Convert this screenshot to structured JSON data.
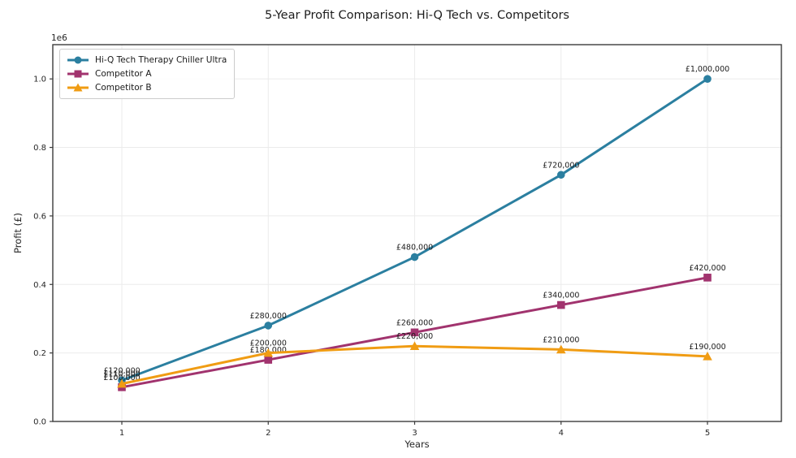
{
  "chart_data": {
    "type": "line",
    "title": "5-Year Profit Comparison: Hi-Q Tech vs. Competitors",
    "xlabel": "Years",
    "ylabel": "Profit (£)",
    "offset_label": "1e6",
    "x": [
      1,
      2,
      3,
      4,
      5
    ],
    "series": [
      {
        "name": "Hi-Q Tech Therapy Chiller Ultra",
        "color": "#2b7fa0",
        "marker": "circle",
        "values": [
          120000,
          280000,
          480000,
          720000,
          1000000
        ],
        "labels": [
          "£120,000",
          "£280,000",
          "£480,000",
          "£720,000",
          "£1,000,000"
        ]
      },
      {
        "name": "Competitor A",
        "color": "#a1336e",
        "marker": "square",
        "values": [
          100000,
          180000,
          260000,
          340000,
          420000
        ],
        "labels": [
          "£100,000",
          "£180,000",
          "£260,000",
          "£340,000",
          "£420,000"
        ]
      },
      {
        "name": "Competitor B",
        "color": "#f09c13",
        "marker": "triangle",
        "values": [
          110000,
          200000,
          220000,
          210000,
          190000
        ],
        "labels": [
          "£110,000",
          "£200,000",
          "£220,000",
          "£210,000",
          "£190,000"
        ]
      }
    ],
    "xticks": [
      "1",
      "2",
      "3",
      "4",
      "5"
    ],
    "yticks": [
      "0.0",
      "0.2",
      "0.4",
      "0.6",
      "0.8",
      "1.0"
    ],
    "ytick_values": [
      0,
      200000,
      400000,
      600000,
      800000,
      1000000
    ],
    "xlim": [
      1,
      5
    ],
    "ylim": [
      0,
      1100000
    ],
    "grid": true,
    "legend_position": "upper-left",
    "colors": {
      "spine": "#3b3b3b",
      "grid": "#ebebeb",
      "tick_text": "#262626",
      "title_text": "#1c1c1c"
    }
  }
}
